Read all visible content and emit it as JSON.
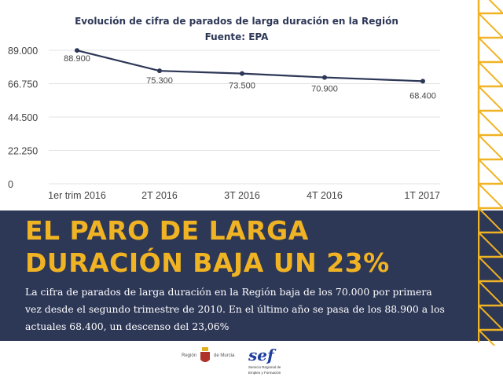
{
  "chart_data": {
    "type": "line",
    "title": "Evolución de cifra de parados de larga duración en la Región",
    "subtitle": "Fuente: EPA",
    "categories": [
      "1er trim 2016",
      "2T 2016",
      "3T 2016",
      "4T 2016",
      "1T 2017"
    ],
    "values": [
      88900,
      75300,
      73500,
      70900,
      68400
    ],
    "data_labels": [
      "88.900",
      "75.300",
      "73.500",
      "70.900",
      "68.400"
    ],
    "yticks": [
      0,
      22250,
      44500,
      66750,
      89000
    ],
    "ytick_labels": [
      "0",
      "22.250",
      "44.500",
      "66.750",
      "89.000"
    ],
    "ylim": [
      0,
      89000
    ],
    "grid": true,
    "line_color": "#2d3756"
  },
  "headline": {
    "line1": "EL PARO DE LARGA",
    "line2": "DURACIÓN BAJA UN 23%"
  },
  "body": "La cifra de parados de larga duración en la Región baja de los 70.000 por primera vez desde el segundo trimestre de 2010. En el último año se pasa de los 88.900 a los actuales 68.400, un descenso del 23,06%",
  "logos": {
    "murcia_left": "Región",
    "murcia_right": "de Murcia",
    "sef": "sef",
    "sef_sub1": "Servicio Regional de",
    "sef_sub2": "Empleo y Formación"
  },
  "colors": {
    "accent": "#f0b323",
    "panel": "#2d3756"
  }
}
